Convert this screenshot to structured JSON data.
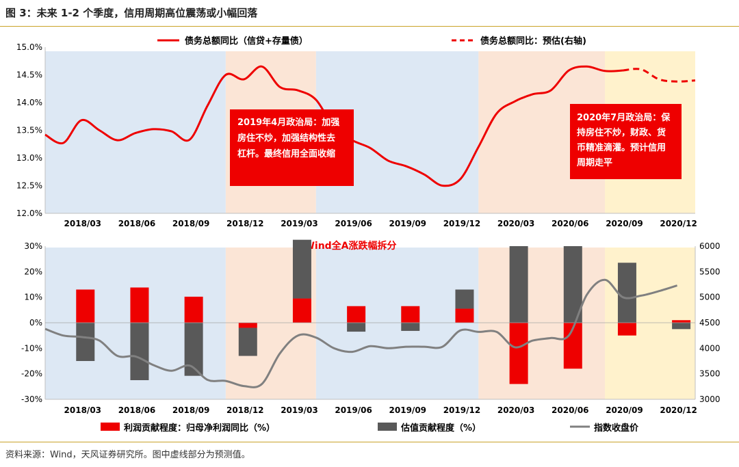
{
  "page": {
    "title": "图 3：未来 1-2 个季度，信用周期高位震荡或小幅回落",
    "source": "资料来源：Wind，天风证券研究所。图中虚线部分为预测值。"
  },
  "colors": {
    "red": "#ee0000",
    "gray": "#595959",
    "index_line": "#808080",
    "shade_blue": "#dde8f4",
    "shade_peach": "#fbe5d6",
    "shade_yellow": "#fff2cc",
    "rule": "#c9a227"
  },
  "chart_data": [
    {
      "type": "line",
      "legend": [
        "债务总额同比（信贷+存量债）",
        "债务总额同比：预估(右轴)"
      ],
      "x_tick_labels": [
        "2018/03",
        "2018/06",
        "2018/09",
        "2018/12",
        "2019/03",
        "2019/06",
        "2019/09",
        "2019/12",
        "2020/03",
        "2020/06",
        "2020/09",
        "2020/12"
      ],
      "y_tick_labels": [
        "12.0%",
        "12.5%",
        "13.0%",
        "13.5%",
        "14.0%",
        "14.5%",
        "15.0%"
      ],
      "ylim": [
        12.0,
        15.0
      ],
      "x_months_range": [
        "2018/03",
        "2020/12"
      ],
      "shaded_periods": [
        {
          "from": "2018/01",
          "to": "2018/11",
          "color": "blue"
        },
        {
          "from": "2018/11",
          "to": "2019/04",
          "color": "peach"
        },
        {
          "from": "2019/04",
          "to": "2020/01",
          "color": "blue"
        },
        {
          "from": "2020/01",
          "to": "2020/08",
          "color": "peach"
        },
        {
          "from": "2020/08",
          "to": "2021/01",
          "color": "yellow"
        }
      ],
      "series": [
        {
          "name": "债务总额同比（信贷+存量债）",
          "style": "solid",
          "x": [
            "2018/01",
            "2018/02",
            "2018/03",
            "2018/04",
            "2018/05",
            "2018/06",
            "2018/07",
            "2018/08",
            "2018/09",
            "2018/10",
            "2018/11",
            "2018/12",
            "2019/01",
            "2019/02",
            "2019/03",
            "2019/04",
            "2019/05",
            "2019/06",
            "2019/07",
            "2019/08",
            "2019/09",
            "2019/10",
            "2019/11",
            "2019/12",
            "2020/01",
            "2020/02",
            "2020/03",
            "2020/04",
            "2020/05",
            "2020/06",
            "2020/07",
            "2020/08",
            "2020/09"
          ],
          "values": [
            13.42,
            13.27,
            13.68,
            13.5,
            13.32,
            13.45,
            13.52,
            13.48,
            13.33,
            13.95,
            14.5,
            14.42,
            14.65,
            14.28,
            14.22,
            14.05,
            13.55,
            13.32,
            13.18,
            12.95,
            12.85,
            12.7,
            12.5,
            12.62,
            13.2,
            13.8,
            14.02,
            14.15,
            14.22,
            14.58,
            14.65,
            14.57,
            14.58
          ]
        },
        {
          "name": "债务总额同比：预估(右轴)",
          "style": "dashed",
          "x": [
            "2020/09",
            "2020/10",
            "2020/11",
            "2020/12",
            "2021/01"
          ],
          "values": [
            14.58,
            14.6,
            14.42,
            14.38,
            14.4
          ]
        }
      ],
      "annotations": [
        {
          "anchor": "2018/11",
          "lines": [
            "2019年4月政治局：加强",
            "房住不炒，加强结构性去",
            "杠杆。最终信用全面收缩"
          ]
        },
        {
          "anchor": "2020/07",
          "lines": [
            "2020年7月政治局：保",
            "持房住不炒，财政、货",
            "币精准滴灌。预计信用",
            "周期走平"
          ]
        }
      ]
    },
    {
      "type": "bar",
      "title": "Wind全A涨跌幅拆分",
      "categories": [
        "2018/03",
        "2018/06",
        "2018/09",
        "2018/12",
        "2019/03",
        "2019/06",
        "2019/09",
        "2019/12",
        "2020/03",
        "2020/06",
        "2020/09",
        "2020/12"
      ],
      "y_left_tick_labels": [
        "-30%",
        "-20%",
        "-10%",
        "0%",
        "10%",
        "20%",
        "30%"
      ],
      "ylim_left": [
        -30,
        30
      ],
      "y_right_tick_labels": [
        "3000",
        "3500",
        "4000",
        "4500",
        "5000",
        "5500",
        "6000"
      ],
      "ylim_right": [
        3000,
        6000
      ],
      "legend": [
        "利润贡献程度：归母净利润同比（%）",
        "估值贡献程度（%）",
        "指数收盘价"
      ],
      "series": [
        {
          "name": "利润贡献程度：归母净利润同比（%）",
          "values": [
            13.0,
            13.8,
            10.2,
            -2.0,
            9.5,
            6.5,
            6.5,
            5.5,
            -24.0,
            -18.0,
            -5.0,
            1.0
          ]
        },
        {
          "name": "估值贡献程度（%）",
          "values": [
            -15.0,
            -22.5,
            -20.8,
            -11.0,
            23.0,
            -3.5,
            -3.2,
            7.5,
            30.0,
            30.0,
            23.5,
            -2.5
          ]
        },
        {
          "name": "指数收盘价",
          "type": "line",
          "x": [
            "2018/01",
            "2018/02",
            "2018/03",
            "2018/04",
            "2018/05",
            "2018/06",
            "2018/07",
            "2018/08",
            "2018/09",
            "2018/10",
            "2018/11",
            "2018/12",
            "2019/01",
            "2019/02",
            "2019/03",
            "2019/04",
            "2019/05",
            "2019/06",
            "2019/07",
            "2019/08",
            "2019/09",
            "2019/10",
            "2019/11",
            "2019/12",
            "2020/01",
            "2020/02",
            "2020/03",
            "2020/04",
            "2020/05",
            "2020/06",
            "2020/07",
            "2020/08",
            "2020/09",
            "2020/10",
            "2020/11",
            "2020/12"
          ],
          "values": [
            4380,
            4250,
            4220,
            4150,
            3850,
            3840,
            3670,
            3560,
            3660,
            3380,
            3360,
            3260,
            3300,
            3900,
            4250,
            4210,
            4000,
            3930,
            4040,
            4000,
            4030,
            4030,
            4030,
            4350,
            4320,
            4320,
            4020,
            4150,
            4200,
            4250,
            5050,
            5340,
            5000,
            5030,
            5120,
            5230
          ]
        }
      ]
    }
  ]
}
